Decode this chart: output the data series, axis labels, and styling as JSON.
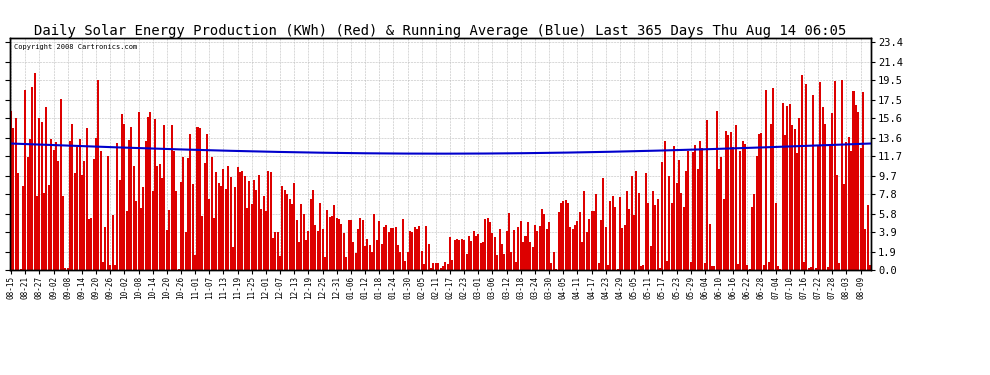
{
  "title": "Daily Solar Energy Production (KWh) (Red) & Running Average (Blue) Last 365 Days Thu Aug 14 06:05",
  "copyright_text": "Copyright 2008 Cartronics.com",
  "yticks": [
    0.0,
    1.9,
    3.9,
    5.8,
    7.8,
    9.7,
    11.7,
    13.6,
    15.6,
    17.5,
    19.5,
    21.4,
    23.4
  ],
  "ymax": 23.4,
  "ymin": 0.0,
  "bar_color": "#dd0000",
  "line_color": "#0000cc",
  "background_color": "#ffffff",
  "grid_color": "#bbbbbb",
  "title_fontsize": 10,
  "xtick_fontsize": 5.5,
  "ytick_fontsize": 7.5,
  "xtick_labels": [
    "08-15",
    "08-21",
    "08-27",
    "09-02",
    "09-08",
    "09-14",
    "09-20",
    "09-26",
    "10-02",
    "10-08",
    "10-14",
    "10-20",
    "10-26",
    "11-01",
    "11-07",
    "11-13",
    "11-19",
    "11-25",
    "12-01",
    "12-07",
    "12-13",
    "12-19",
    "12-25",
    "12-31",
    "01-06",
    "01-12",
    "01-18",
    "01-24",
    "01-30",
    "02-05",
    "02-11",
    "02-17",
    "02-23",
    "03-01",
    "03-06",
    "03-12",
    "03-18",
    "03-24",
    "03-30",
    "04-05",
    "04-11",
    "04-17",
    "04-23",
    "04-29",
    "05-05",
    "05-11",
    "05-17",
    "05-23",
    "05-29",
    "06-04",
    "06-10",
    "06-16",
    "06-22",
    "06-28",
    "07-04",
    "07-10",
    "07-16",
    "07-22",
    "07-28",
    "08-03",
    "08-09"
  ],
  "n_days": 365,
  "seed": 42
}
